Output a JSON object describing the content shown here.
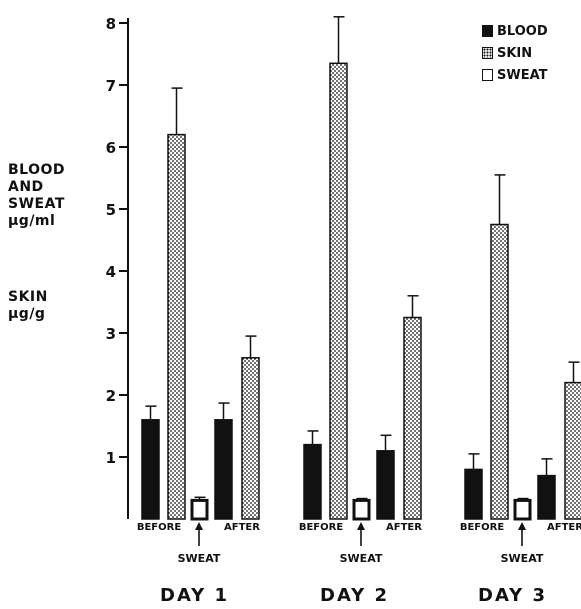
{
  "chart_data": {
    "type": "bar",
    "ylabel_lines": [
      "BLOOD",
      "AND",
      "SWEAT",
      "µg/ml"
    ],
    "ylabel2_lines": [
      "SKIN",
      "µg/g"
    ],
    "ylim": [
      0,
      8
    ],
    "yticks": [
      "1",
      "2",
      "3",
      "4",
      "5",
      "6",
      "7",
      "8"
    ],
    "legend": [
      {
        "name": "BLOOD",
        "style": "solid",
        "color": "#111111"
      },
      {
        "name": "SKIN",
        "style": "dotted",
        "color": "#111111"
      },
      {
        "name": "SWEAT",
        "style": "open",
        "color": "#ffffff"
      }
    ],
    "legend_position": "top-right",
    "group_labels": {
      "before": "BEFORE",
      "after": "AFTER",
      "sweat": "SWEAT"
    },
    "days": [
      {
        "label": "DAY 1",
        "bars": [
          {
            "series": "BLOOD",
            "period": "BEFORE",
            "value": 1.6,
            "error": 0.22
          },
          {
            "series": "SKIN",
            "period": "BEFORE",
            "value": 6.2,
            "error": 0.75
          },
          {
            "series": "SWEAT",
            "period": "SWEAT",
            "value": 0.3,
            "error": 0.05
          },
          {
            "series": "BLOOD",
            "period": "AFTER",
            "value": 1.6,
            "error": 0.27
          },
          {
            "series": "SKIN",
            "period": "AFTER",
            "value": 2.6,
            "error": 0.35
          }
        ]
      },
      {
        "label": "DAY 2",
        "bars": [
          {
            "series": "BLOOD",
            "period": "BEFORE",
            "value": 1.2,
            "error": 0.22
          },
          {
            "series": "SKIN",
            "period": "BEFORE",
            "value": 7.35,
            "error": 0.75
          },
          {
            "series": "SWEAT",
            "period": "SWEAT",
            "value": 0.3,
            "error": 0.03
          },
          {
            "series": "BLOOD",
            "period": "AFTER",
            "value": 1.1,
            "error": 0.25
          },
          {
            "series": "SKIN",
            "period": "AFTER",
            "value": 3.25,
            "error": 0.35
          }
        ]
      },
      {
        "label": "DAY 3",
        "bars": [
          {
            "series": "BLOOD",
            "period": "BEFORE",
            "value": 0.8,
            "error": 0.25
          },
          {
            "series": "SKIN",
            "period": "BEFORE",
            "value": 4.75,
            "error": 0.8
          },
          {
            "series": "SWEAT",
            "period": "SWEAT",
            "value": 0.3,
            "error": 0.03
          },
          {
            "series": "BLOOD",
            "period": "AFTER",
            "value": 0.7,
            "error": 0.27
          },
          {
            "series": "SKIN",
            "period": "AFTER",
            "value": 2.2,
            "error": 0.33
          }
        ]
      }
    ]
  }
}
